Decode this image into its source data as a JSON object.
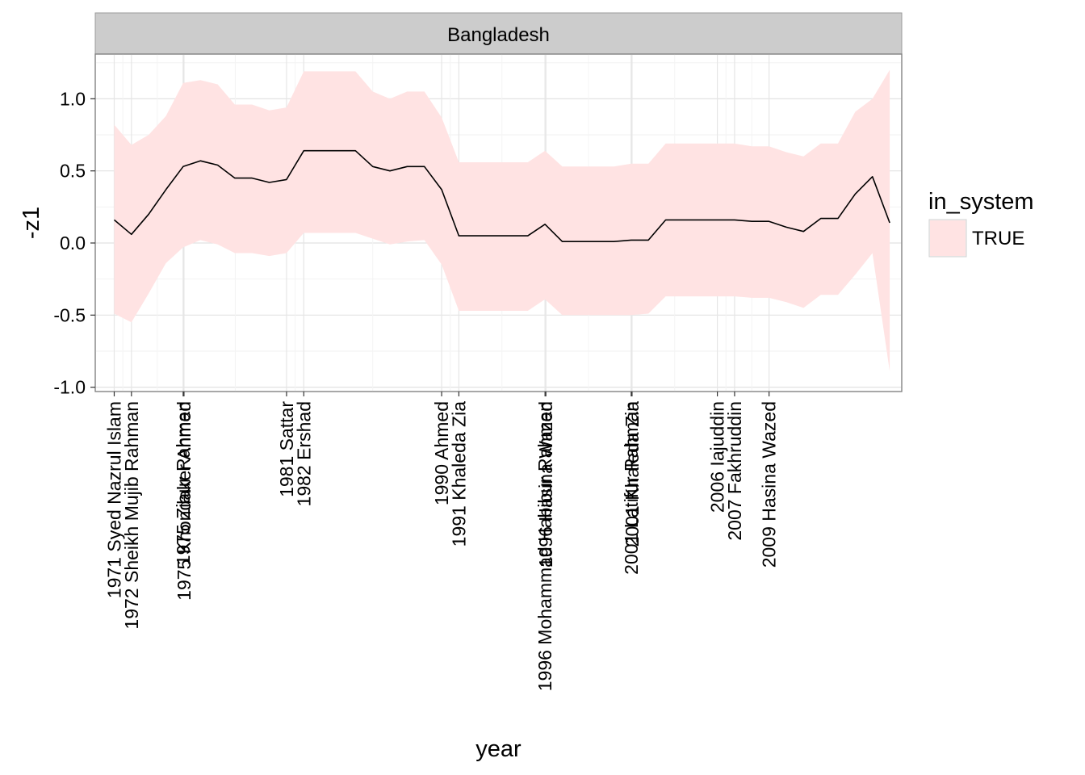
{
  "chart_data": {
    "type": "line",
    "facet_label": "Bangladesh",
    "xlabel": "year",
    "ylabel": "-z1",
    "ylim": [
      -1.03,
      1.31
    ],
    "xlim": [
      1969.9,
      2016.7
    ],
    "grid": true,
    "legend": {
      "title": "in_system",
      "entries": [
        "TRUE"
      ],
      "placement": "right"
    },
    "y_ticks": [
      {
        "value": -1.0,
        "label": "-1.0"
      },
      {
        "value": -0.5,
        "label": "-0.5"
      },
      {
        "value": 0.0,
        "label": "0.0"
      },
      {
        "value": 0.5,
        "label": "0.5"
      },
      {
        "value": 1.0,
        "label": "1.0"
      }
    ],
    "x_ticks": [
      {
        "value": 1971,
        "label": "1971 Syed Nazrul Islam"
      },
      {
        "value": 1972,
        "label": "1972 Sheikh Mujib Rahman"
      },
      {
        "value": 1975,
        "label": "1975 Ziaur Rahman"
      },
      {
        "value": 1975.05,
        "label": "1975 Khondaker Ahmed"
      },
      {
        "value": 1981,
        "label": "1981 Sattar"
      },
      {
        "value": 1982,
        "label": "1982 Ershad"
      },
      {
        "value": 1990,
        "label": "1990 Ahmed"
      },
      {
        "value": 1991,
        "label": "1991 Khaleda Zia"
      },
      {
        "value": 1996,
        "label": "1996 Mohammad Habibur Rahman"
      },
      {
        "value": 1996.05,
        "label": "1996 Hasina Wazed"
      },
      {
        "value": 2001,
        "label": "2001 Latifur Rahman"
      },
      {
        "value": 2001.05,
        "label": "2001 Khaleda Zia"
      },
      {
        "value": 2006,
        "label": "2006 Iajuddin"
      },
      {
        "value": 2007,
        "label": "2007 Fakhruddin"
      },
      {
        "value": 2009,
        "label": "2009 Hasina Wazed"
      }
    ],
    "series": [
      {
        "name": "TRUE",
        "color": "#ffe3e3",
        "line_color": "#000000",
        "x": [
          1971,
          1972,
          1973,
          1974,
          1975,
          1976,
          1977,
          1978,
          1979,
          1980,
          1981,
          1982,
          1983,
          1984,
          1985,
          1986,
          1987,
          1988,
          1989,
          1990,
          1991,
          1992,
          1993,
          1994,
          1995,
          1996,
          1997,
          1998,
          1999,
          2000,
          2001,
          2002,
          2003,
          2004,
          2005,
          2006,
          2007,
          2008,
          2009,
          2010,
          2011,
          2012,
          2013,
          2014,
          2015,
          2016
        ],
        "y": [
          0.16,
          0.06,
          0.2,
          0.37,
          0.53,
          0.57,
          0.54,
          0.45,
          0.45,
          0.42,
          0.44,
          0.64,
          0.64,
          0.64,
          0.64,
          0.53,
          0.5,
          0.53,
          0.53,
          0.37,
          0.05,
          0.05,
          0.05,
          0.05,
          0.05,
          0.13,
          0.01,
          0.01,
          0.01,
          0.01,
          0.02,
          0.02,
          0.16,
          0.16,
          0.16,
          0.16,
          0.16,
          0.15,
          0.15,
          0.11,
          0.08,
          0.17,
          0.17,
          0.34,
          0.46,
          0.14
        ],
        "lower": [
          -0.49,
          -0.55,
          -0.35,
          -0.14,
          -0.03,
          0.02,
          -0.01,
          -0.07,
          -0.07,
          -0.09,
          -0.07,
          0.07,
          0.07,
          0.07,
          0.07,
          0.03,
          -0.01,
          0.01,
          0.02,
          -0.15,
          -0.47,
          -0.47,
          -0.47,
          -0.47,
          -0.47,
          -0.39,
          -0.5,
          -0.5,
          -0.5,
          -0.5,
          -0.5,
          -0.49,
          -0.37,
          -0.37,
          -0.37,
          -0.37,
          -0.37,
          -0.38,
          -0.38,
          -0.41,
          -0.45,
          -0.36,
          -0.36,
          -0.22,
          -0.07,
          -0.89
        ],
        "upper": [
          0.82,
          0.68,
          0.75,
          0.88,
          1.11,
          1.13,
          1.1,
          0.96,
          0.96,
          0.92,
          0.94,
          1.19,
          1.19,
          1.19,
          1.19,
          1.05,
          1.0,
          1.05,
          1.05,
          0.87,
          0.56,
          0.56,
          0.56,
          0.56,
          0.56,
          0.64,
          0.53,
          0.53,
          0.53,
          0.53,
          0.55,
          0.55,
          0.69,
          0.69,
          0.69,
          0.69,
          0.69,
          0.67,
          0.67,
          0.63,
          0.6,
          0.69,
          0.69,
          0.91,
          1.0,
          1.2
        ]
      }
    ]
  }
}
